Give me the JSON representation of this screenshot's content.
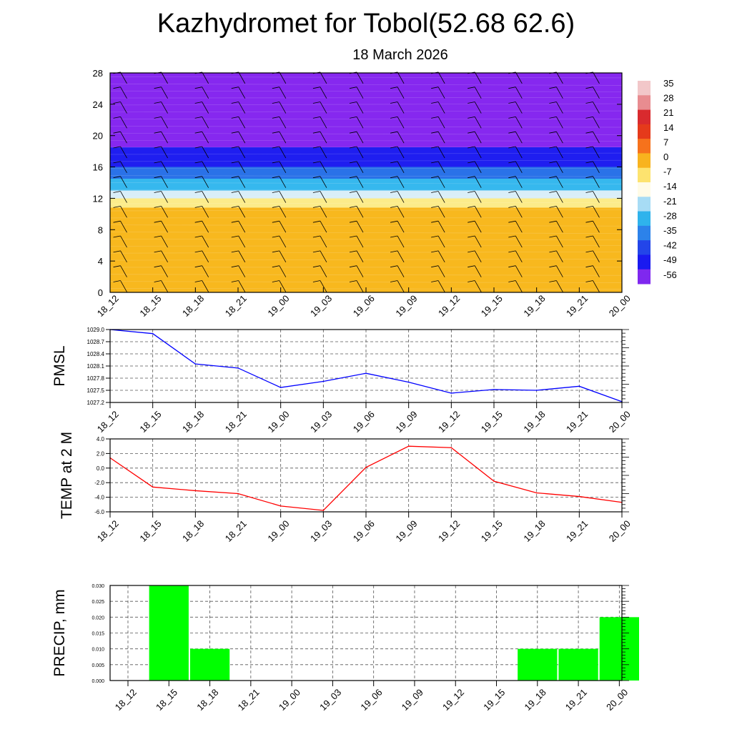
{
  "title": "Kazhydromet for Tobol(52.68 62.6)",
  "subtitle": "18 March 2026",
  "time_labels": [
    "18_12",
    "18_15",
    "18_18",
    "18_21",
    "19_00",
    "19_03",
    "19_06",
    "19_09",
    "19_12",
    "19_15",
    "19_18",
    "19_21",
    "20_00"
  ],
  "colors": {
    "pmsl_line": "#0000ff",
    "temp_line": "#ff0000",
    "precip_bar": "#00ff00",
    "grid": "#000000"
  },
  "chart_data": [
    {
      "type": "heatmap",
      "name": "upper-air temperature and wind cross-section",
      "y_ticks": [
        0,
        4,
        8,
        12,
        16,
        20,
        24,
        28
      ],
      "ylim": [
        0,
        28
      ],
      "colorbar_labels": [
        "35",
        "28",
        "21",
        "14",
        "7",
        "0",
        "-7",
        "-14",
        "-21",
        "-28",
        "-35",
        "-42",
        "-49",
        "-56"
      ],
      "layers": [
        {
          "from": 0,
          "to": 10.8,
          "value": 0,
          "color": "#f8b81e"
        },
        {
          "from": 10.8,
          "to": 12,
          "value": -7,
          "color": "#fcec8a"
        },
        {
          "from": 12,
          "to": 13,
          "value": -14,
          "color": "#d9eef8"
        },
        {
          "from": 13,
          "to": 14.5,
          "value": -21,
          "color": "#36b8ee"
        },
        {
          "from": 14.5,
          "to": 16,
          "value": -35,
          "color": "#2a72e8"
        },
        {
          "from": 16,
          "to": 18.5,
          "value": -49,
          "color": "#1f1ef0"
        },
        {
          "from": 18.5,
          "to": 28,
          "value": -56,
          "color": "#8628ef"
        }
      ]
    },
    {
      "type": "line",
      "name": "PMSL",
      "ylabel": "PMSL",
      "y_ticks": [
        "1029.0",
        "1028.7",
        "1028.4",
        "1028.1",
        "1027.8",
        "1027.5",
        "1027.2"
      ],
      "ylim": [
        1027.2,
        1029.0
      ],
      "values": [
        1029.0,
        1028.9,
        1028.15,
        1028.05,
        1027.57,
        1027.72,
        1027.92,
        1027.7,
        1027.43,
        1027.52,
        1027.5,
        1027.6,
        1027.22
      ]
    },
    {
      "type": "line",
      "name": "TEMP at 2 M",
      "ylabel": "TEMP at 2 M",
      "y_ticks": [
        "4.0",
        "2.0",
        "0.0",
        "-2.0",
        "-4.0",
        "-6.0"
      ],
      "ylim": [
        -6.0,
        4.0
      ],
      "values": [
        1.4,
        -2.6,
        -3.1,
        -3.5,
        -5.2,
        -5.8,
        0.1,
        3.0,
        2.8,
        -1.8,
        -3.4,
        -3.9,
        -4.7
      ]
    },
    {
      "type": "bar",
      "name": "PRECIP, mm",
      "ylabel": "PRECIP, mm",
      "y_ticks": [
        "0.030",
        "0.025",
        "0.020",
        "0.015",
        "0.010",
        "0.005",
        "0.000"
      ],
      "ylim": [
        0.0,
        0.03
      ],
      "values": [
        0,
        0.03,
        0.01,
        0,
        0,
        0,
        0,
        0,
        0,
        0,
        0.01,
        0.01,
        0.02
      ]
    }
  ]
}
